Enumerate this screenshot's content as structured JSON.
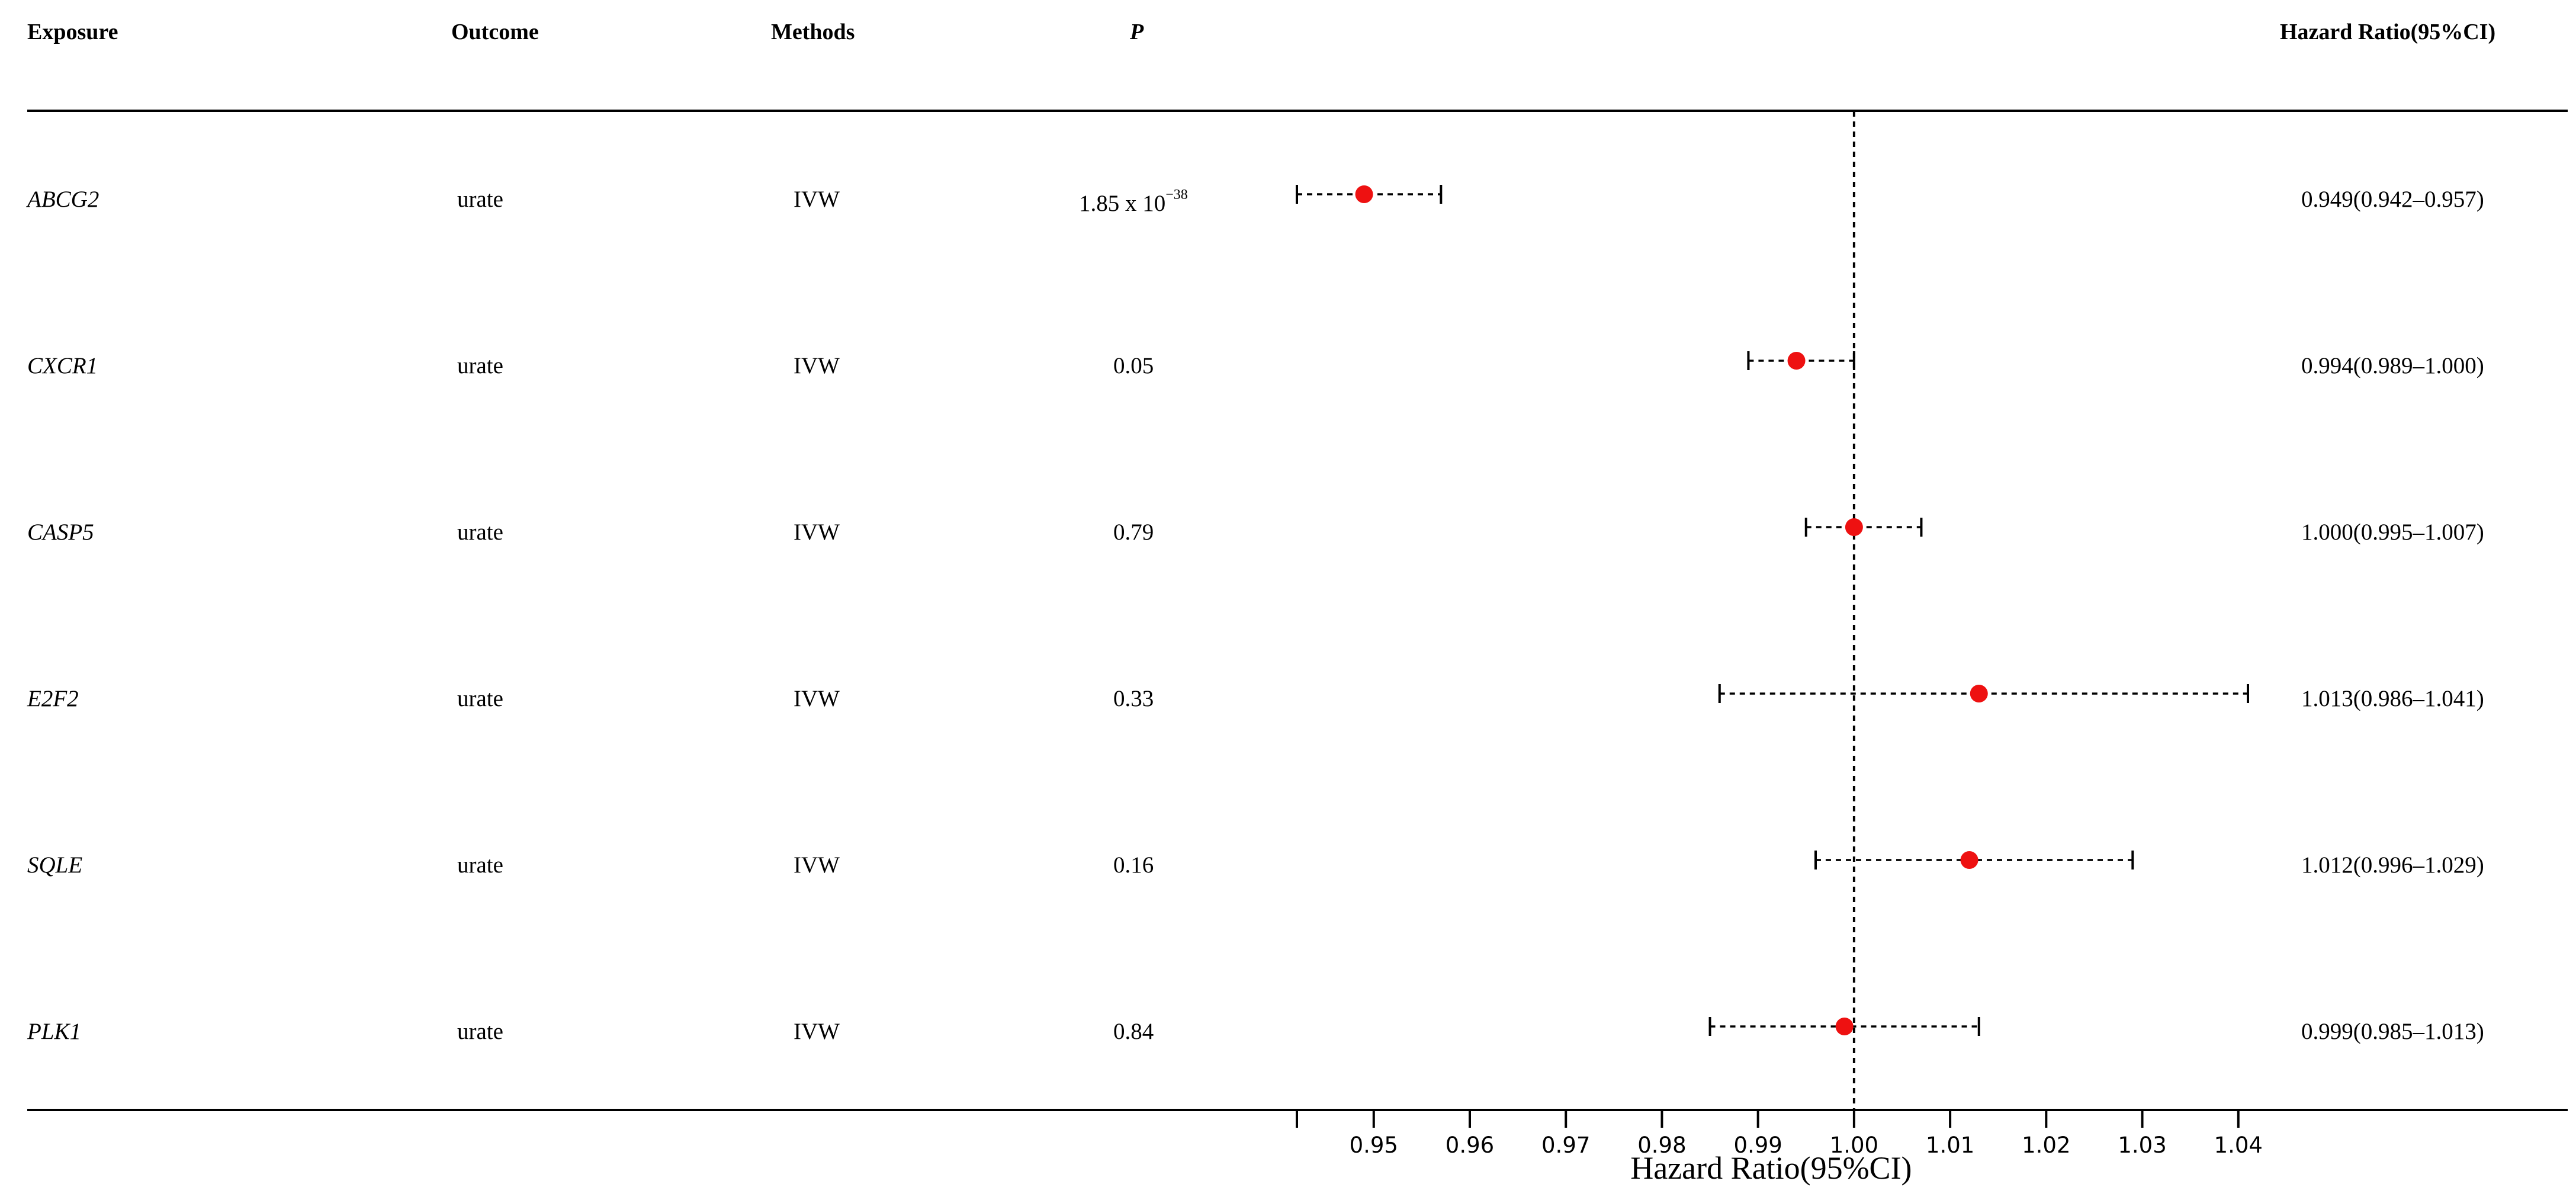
{
  "header": {
    "exposure": "Exposure",
    "outcome": "Outcome",
    "methods": "Methods",
    "p": "P",
    "hr": "Hazard Ratio(95%CI)"
  },
  "rows": [
    {
      "exposure": "ABCG2",
      "outcome": "urate",
      "method": "IVW",
      "p_base": "1.85 x 10",
      "p_exp": "−38",
      "hr_text": "0.949(0.942–0.957)"
    },
    {
      "exposure": "CXCR1",
      "outcome": "urate",
      "method": "IVW",
      "p_base": "0.05",
      "p_exp": "",
      "hr_text": "0.994(0.989–1.000)"
    },
    {
      "exposure": "CASP5",
      "outcome": "urate",
      "method": "IVW",
      "p_base": "0.79",
      "p_exp": "",
      "hr_text": "1.000(0.995–1.007)"
    },
    {
      "exposure": "E2F2",
      "outcome": "urate",
      "method": "IVW",
      "p_base": "0.33",
      "p_exp": "",
      "hr_text": "1.013(0.986–1.041)"
    },
    {
      "exposure": "SQLE",
      "outcome": "urate",
      "method": "IVW",
      "p_base": "0.16",
      "p_exp": "",
      "hr_text": "1.012(0.996–1.029)"
    },
    {
      "exposure": "PLK1",
      "outcome": "urate",
      "method": "IVW",
      "p_base": "0.84",
      "p_exp": "",
      "hr_text": "0.999(0.985–1.013)"
    }
  ],
  "chart_data": {
    "type": "forest",
    "xlabel": "Hazard Ratio(95%CI)",
    "xlim": [
      0.942,
      1.041
    ],
    "reference_line": 1.0,
    "ticks": [
      0.95,
      0.96,
      0.97,
      0.98,
      0.99,
      1.0,
      1.01,
      1.02,
      1.03,
      1.04
    ],
    "tick_labels": [
      "0.95",
      "0.96",
      "0.97",
      "0.98",
      "0.99",
      "1.00",
      "1.01",
      "1.02",
      "1.03",
      "1.04"
    ],
    "series": [
      {
        "name": "ABCG2",
        "hr": 0.949,
        "lower": 0.942,
        "upper": 0.957
      },
      {
        "name": "CXCR1",
        "hr": 0.994,
        "lower": 0.989,
        "upper": 1.0
      },
      {
        "name": "CASP5",
        "hr": 1.0,
        "lower": 0.995,
        "upper": 1.007
      },
      {
        "name": "E2F2",
        "hr": 1.013,
        "lower": 0.986,
        "upper": 1.041
      },
      {
        "name": "SQLE",
        "hr": 1.012,
        "lower": 0.996,
        "upper": 1.029
      },
      {
        "name": "PLK1",
        "hr": 0.999,
        "lower": 0.985,
        "upper": 1.013
      }
    ],
    "point_color": "#ee1111"
  }
}
